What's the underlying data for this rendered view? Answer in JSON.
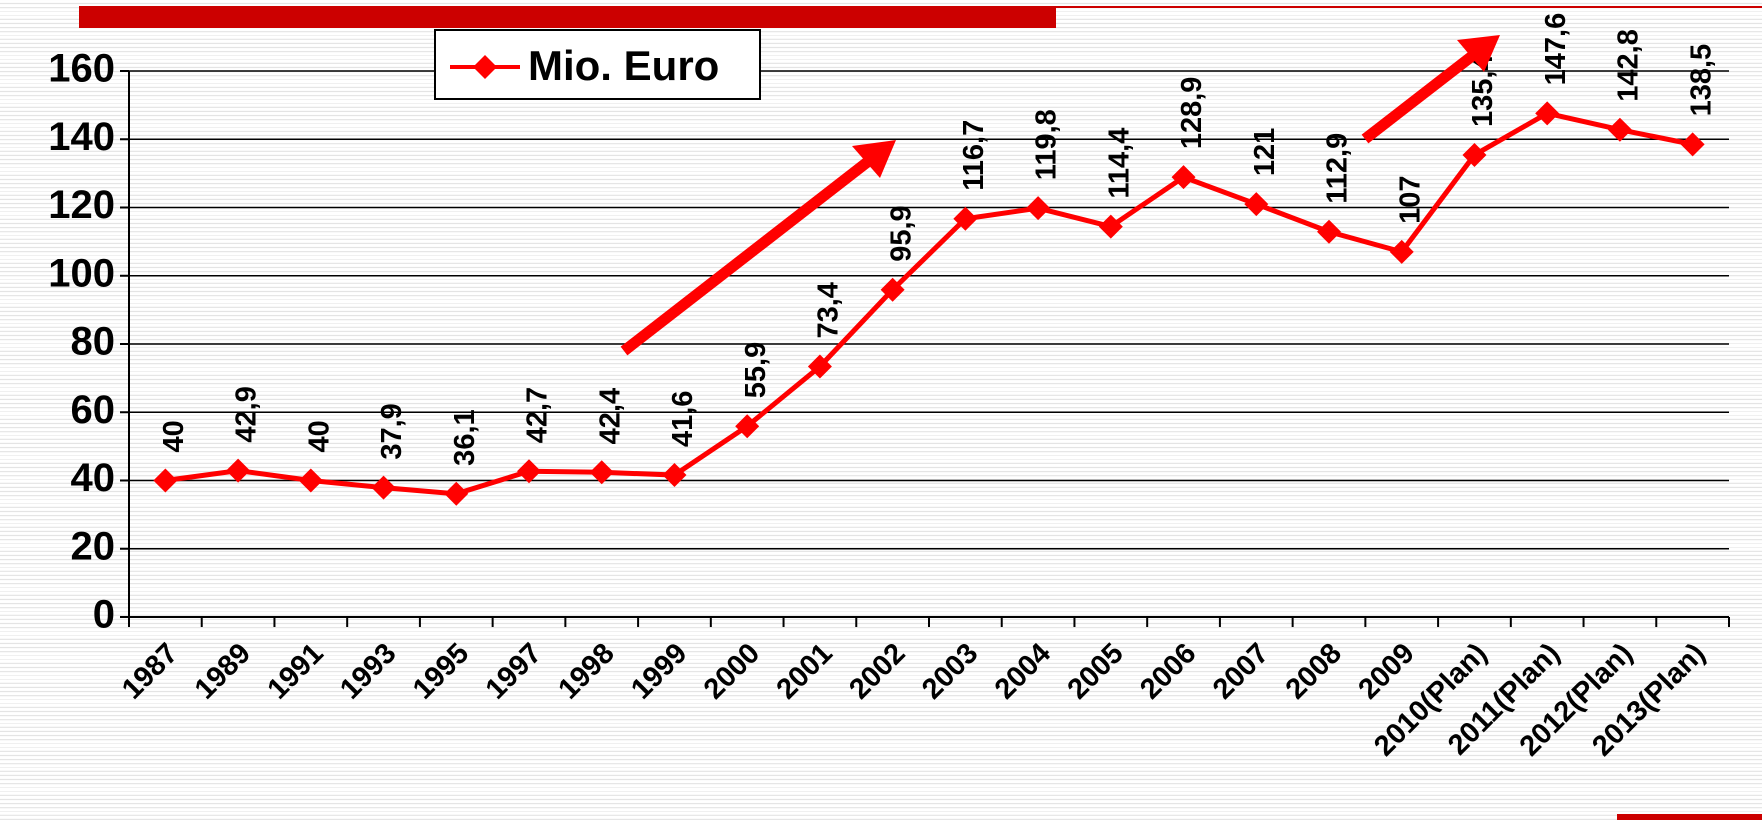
{
  "chart_data": {
    "type": "line",
    "categories": [
      "1987",
      "1989",
      "1991",
      "1993",
      "1995",
      "1997",
      "1998",
      "1999",
      "2000",
      "2001",
      "2002",
      "2003",
      "2004",
      "2005",
      "2006",
      "2007",
      "2008",
      "2009",
      "2010(Plan)",
      "2011(Plan)",
      "2012(Plan)",
      "2013(Plan)"
    ],
    "series": [
      {
        "name": "Mio. Euro",
        "color": "#ff0000",
        "values": [
          40,
          42.9,
          40,
          37.9,
          36.1,
          42.7,
          42.4,
          41.6,
          55.9,
          73.4,
          95.9,
          116.7,
          119.8,
          114.4,
          128.9,
          121,
          112.9,
          107,
          135.4,
          147.6,
          142.8,
          138.5
        ],
        "value_labels": [
          "40",
          "42,9",
          "40",
          "37,9",
          "36,1",
          "42,7",
          "42,4",
          "41,6",
          "55,9",
          "73,4",
          "95,9",
          "116,7",
          "119,8",
          "114,4",
          "128,9",
          "121",
          "112,9",
          "107",
          "135,4",
          "147,6",
          "142,8",
          "138,5"
        ]
      }
    ],
    "ylim": [
      0,
      160
    ],
    "yticks": [
      0,
      20,
      40,
      60,
      80,
      100,
      120,
      140,
      160
    ],
    "grid": true,
    "legend": "top-left"
  }
}
